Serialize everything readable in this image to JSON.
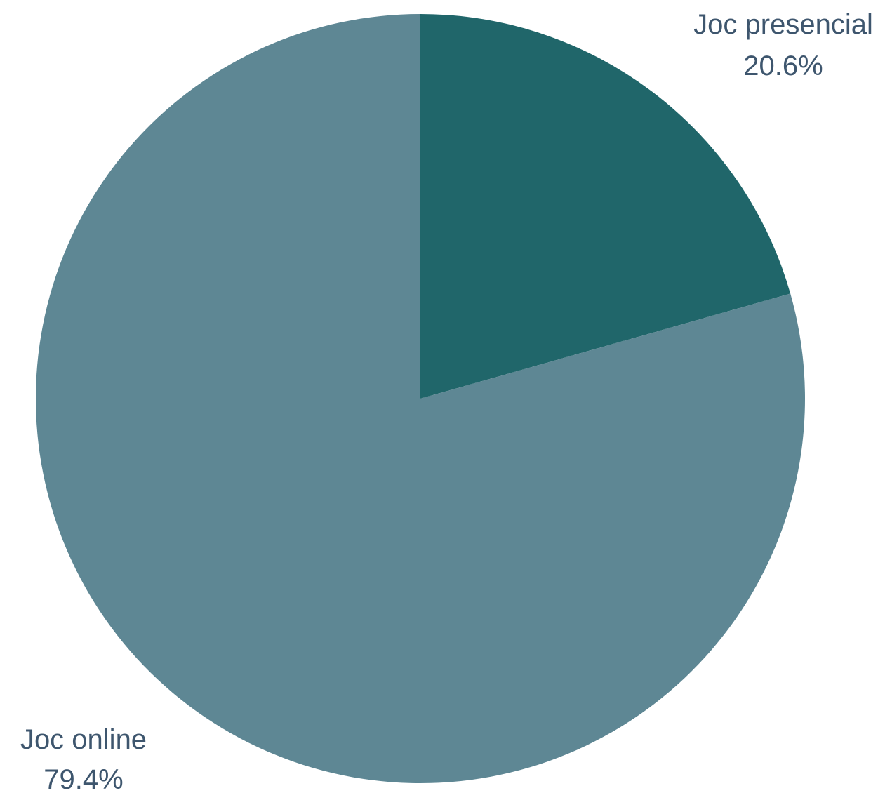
{
  "chart_data": {
    "type": "pie",
    "title": "",
    "start_angle_deg": 0,
    "direction": "clockwise",
    "slices": [
      {
        "label": "Joc presencial",
        "value": 20.6,
        "display_value": "20.6%",
        "color": "#20666a",
        "label_position": "top-right"
      },
      {
        "label": "Joc online",
        "value": 79.4,
        "display_value": "79.4%",
        "color": "#5e8794",
        "label_position": "bottom-left"
      }
    ]
  },
  "colors": {
    "background": "#ffffff",
    "label_text": "#3e566e"
  }
}
